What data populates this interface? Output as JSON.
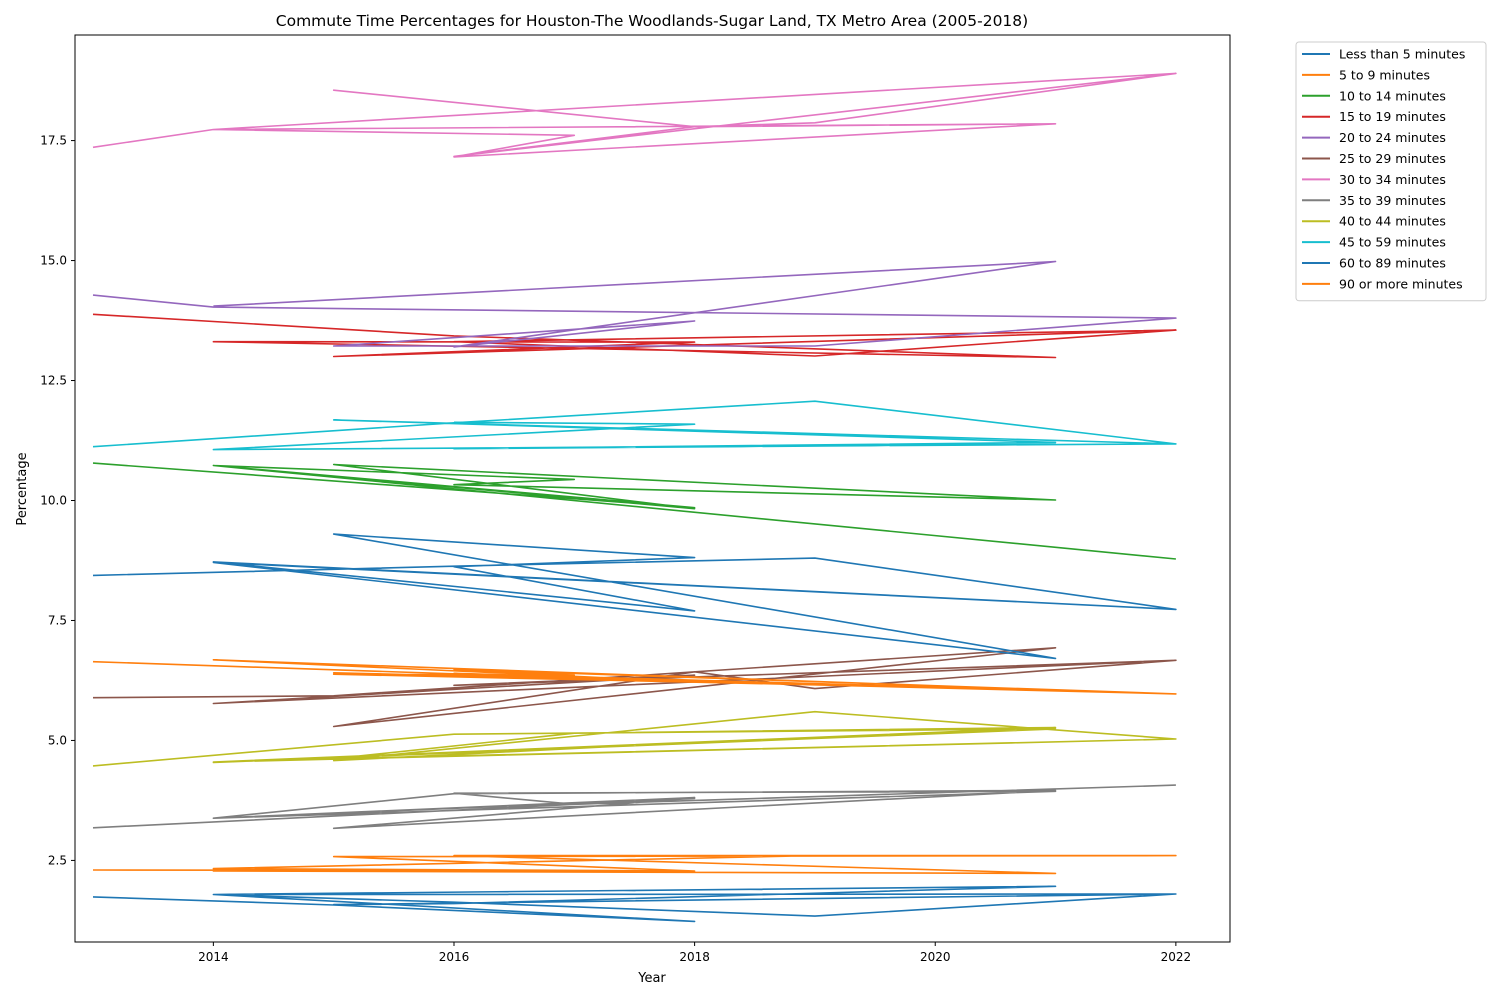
{
  "chart_data": {
    "type": "line",
    "title": "Commute Time Percentages for Houston-The Woodlands-Sugar Land, TX Metro Area (2005-2018)",
    "xlabel": "Year",
    "ylabel": "Percentage",
    "xlim": [
      2012.85,
      2022.45
    ],
    "ylim": [
      0.8,
      19.7
    ],
    "x_ticks": [
      2014,
      2016,
      2018,
      2020,
      2022
    ],
    "y_ticks": [
      2.5,
      5.0,
      7.5,
      10.0,
      12.5,
      15.0,
      17.5
    ],
    "x_tick_labels": [
      "2014",
      "2016",
      "2018",
      "2020",
      "2022"
    ],
    "y_tick_labels": [
      "2.5",
      "5.0",
      "7.5",
      "10.0",
      "12.5",
      "15.0",
      "17.5"
    ],
    "legend_position": "outside-top-right",
    "grid": false,
    "series": [
      {
        "name": "Less than 5 minutes",
        "color": "#1f77b4",
        "points": [
          [
            2013,
            1.74
          ],
          [
            2015,
            1.57
          ],
          [
            2018,
            1.23
          ],
          [
            2014,
            1.79
          ],
          [
            2016,
            1.63
          ],
          [
            2019,
            1.34
          ],
          [
            2022,
            1.8
          ],
          [
            2015,
            1.58
          ],
          [
            2016,
            1.6
          ],
          [
            2021,
            1.96
          ],
          [
            2014,
            1.79
          ],
          [
            2022,
            1.8
          ]
        ]
      },
      {
        "name": "5 to 9 minutes",
        "color": "#ff7f0e",
        "points": [
          [
            2013,
            2.3
          ],
          [
            2016,
            2.29
          ],
          [
            2018,
            2.28
          ],
          [
            2014,
            2.33
          ],
          [
            2019,
            2.6
          ],
          [
            2022,
            2.6
          ],
          [
            2015,
            2.58
          ],
          [
            2018,
            2.28
          ],
          [
            2014,
            2.28
          ],
          [
            2021,
            2.23
          ],
          [
            2016,
            2.6
          ],
          [
            2022,
            2.6
          ]
        ]
      },
      {
        "name": "10 to 14 minutes",
        "color": "#2ca02c",
        "points": [
          [
            2013,
            10.78
          ],
          [
            2018,
            9.85
          ],
          [
            2014,
            10.73
          ],
          [
            2017,
            10.44
          ],
          [
            2016,
            10.33
          ],
          [
            2021,
            10.01
          ],
          [
            2015,
            10.75
          ],
          [
            2018,
            9.83
          ],
          [
            2014,
            10.73
          ],
          [
            2022,
            8.78
          ]
        ]
      },
      {
        "name": "15 to 19 minutes",
        "color": "#d62728",
        "points": [
          [
            2013,
            13.88
          ],
          [
            2016,
            13.43
          ],
          [
            2021,
            12.98
          ],
          [
            2014,
            13.31
          ],
          [
            2018,
            13.3
          ],
          [
            2015,
            13.0
          ],
          [
            2022,
            13.55
          ],
          [
            2016,
            13.31
          ],
          [
            2019,
            13.01
          ],
          [
            2022,
            13.55
          ]
        ]
      },
      {
        "name": "20 to 24 minutes",
        "color": "#9467bd",
        "points": [
          [
            2013,
            14.28
          ],
          [
            2014,
            14.03
          ],
          [
            2022,
            13.8
          ],
          [
            2019,
            13.22
          ],
          [
            2015,
            13.22
          ],
          [
            2018,
            13.74
          ],
          [
            2016,
            13.2
          ],
          [
            2021,
            14.98
          ],
          [
            2014,
            14.05
          ]
        ]
      },
      {
        "name": "25 to 29 minutes",
        "color": "#8c564b",
        "points": [
          [
            2013,
            5.89
          ],
          [
            2015,
            5.93
          ],
          [
            2021,
            6.93
          ],
          [
            2015,
            5.29
          ],
          [
            2018,
            6.43
          ],
          [
            2019,
            6.08
          ],
          [
            2022,
            6.67
          ],
          [
            2014,
            5.77
          ],
          [
            2018,
            6.36
          ],
          [
            2016,
            6.15
          ],
          [
            2022,
            6.67
          ]
        ]
      },
      {
        "name": "30 to 34 minutes",
        "color": "#e377c2",
        "points": [
          [
            2013,
            17.36
          ],
          [
            2014,
            17.73
          ],
          [
            2021,
            17.85
          ],
          [
            2018,
            17.79
          ],
          [
            2015,
            18.55
          ],
          [
            2018,
            17.79
          ],
          [
            2019,
            17.87
          ],
          [
            2022,
            18.9
          ],
          [
            2014,
            17.73
          ],
          [
            2017,
            17.61
          ],
          [
            2016,
            17.16
          ],
          [
            2021,
            17.85
          ],
          [
            2018,
            17.79
          ],
          [
            2016,
            17.17
          ],
          [
            2022,
            18.9
          ]
        ]
      },
      {
        "name": "35 to 39 minutes",
        "color": "#7f7f7f",
        "points": [
          [
            2013,
            3.18
          ],
          [
            2018,
            3.79
          ],
          [
            2014,
            3.38
          ],
          [
            2016,
            3.89
          ],
          [
            2021,
            3.96
          ],
          [
            2015,
            3.17
          ],
          [
            2018,
            3.81
          ],
          [
            2014,
            3.38
          ],
          [
            2021,
            3.94
          ],
          [
            2016,
            3.9
          ],
          [
            2017,
            3.67
          ],
          [
            2022,
            4.07
          ]
        ]
      },
      {
        "name": "40 to 44 minutes",
        "color": "#bcbd22",
        "points": [
          [
            2013,
            4.47
          ],
          [
            2016,
            5.13
          ],
          [
            2021,
            5.24
          ],
          [
            2014,
            4.54
          ],
          [
            2018,
            4.96
          ],
          [
            2015,
            4.58
          ],
          [
            2019,
            5.6
          ],
          [
            2022,
            5.03
          ],
          [
            2015,
            4.62
          ],
          [
            2017,
            5.15
          ],
          [
            2021,
            5.27
          ],
          [
            2014,
            4.55
          ],
          [
            2022,
            5.03
          ]
        ]
      },
      {
        "name": "45 to 59 minutes",
        "color": "#17becf",
        "points": [
          [
            2013,
            11.12
          ],
          [
            2016,
            11.62
          ],
          [
            2019,
            12.07
          ],
          [
            2022,
            11.18
          ],
          [
            2014,
            11.06
          ],
          [
            2022,
            11.18
          ],
          [
            2015,
            11.68
          ],
          [
            2021,
            11.21
          ],
          [
            2016,
            11.08
          ],
          [
            2021,
            11.17
          ],
          [
            2014,
            11.06
          ],
          [
            2018,
            11.59
          ],
          [
            2016,
            11.63
          ]
        ]
      },
      {
        "name": "60 to 89 minutes",
        "color": "#1f77b4",
        "points": [
          [
            2013,
            8.44
          ],
          [
            2016,
            8.63
          ],
          [
            2019,
            8.8
          ],
          [
            2022,
            7.73
          ],
          [
            2014,
            8.71
          ],
          [
            2021,
            6.71
          ],
          [
            2015,
            9.3
          ],
          [
            2018,
            8.81
          ],
          [
            2016,
            8.62
          ],
          [
            2018,
            7.7
          ],
          [
            2014,
            8.72
          ],
          [
            2022,
            7.73
          ]
        ]
      },
      {
        "name": "90 or more minutes",
        "color": "#ff7f0e",
        "points": [
          [
            2013,
            6.64
          ],
          [
            2018,
            6.22
          ],
          [
            2014,
            6.68
          ],
          [
            2021,
            6.05
          ],
          [
            2015,
            6.38
          ],
          [
            2017,
            6.36
          ],
          [
            2016,
            6.48
          ],
          [
            2022,
            5.97
          ],
          [
            2015,
            6.41
          ],
          [
            2021,
            6.04
          ],
          [
            2016,
            6.4
          ],
          [
            2018,
            6.25
          ],
          [
            2022,
            5.97
          ]
        ]
      }
    ]
  }
}
